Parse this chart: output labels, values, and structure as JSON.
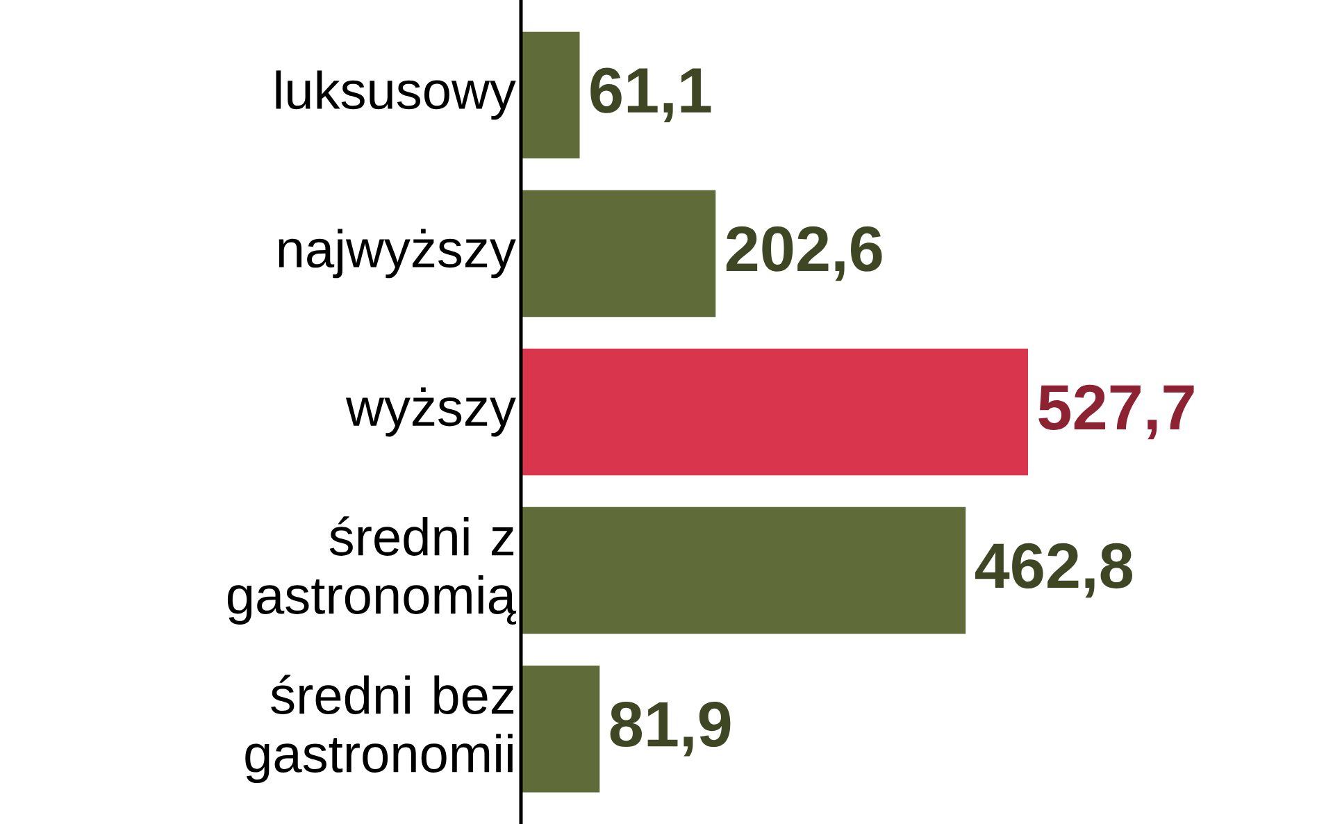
{
  "chart_data": {
    "type": "bar",
    "orientation": "horizontal",
    "categories": [
      "luksusowy",
      "najwyższy",
      "wyższy",
      "średni z gastronomią",
      "średni bez gastronomii"
    ],
    "values": [
      61.1,
      202.6,
      527.7,
      462.8,
      81.9
    ],
    "value_labels": [
      "61,1",
      "202,6",
      "527,7",
      "462,8",
      "81,9"
    ],
    "colors": [
      "#5f6b38",
      "#5f6b38",
      "#d9364d",
      "#5f6b38",
      "#5f6b38"
    ],
    "tick_labels": "y"
  }
}
